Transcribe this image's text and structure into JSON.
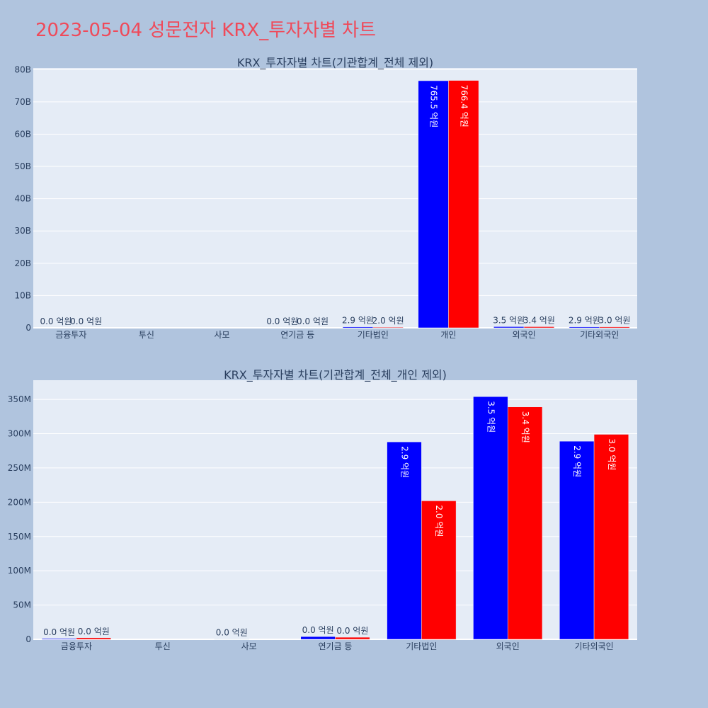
{
  "page": {
    "title": "2023-05-04 성문전자 KRX_투자자별 차트"
  },
  "colors": {
    "background": "#b0c4de",
    "plot_background": "#e5ecf6",
    "series_1": "#0000ff",
    "series_2": "#ff0000",
    "title": "#ef4a5a",
    "text": "#2a3f5f"
  },
  "chart_data": [
    {
      "type": "bar",
      "title": "KRX_투자자별 차트(기관합계_전체 제외)",
      "categories": [
        "금융투자",
        "투신",
        "사모",
        "연기금 등",
        "기타법인",
        "개인",
        "외국인",
        "기타외국인"
      ],
      "ylim": [
        0,
        80500000000
      ],
      "yticks": [
        0,
        10000000000,
        20000000000,
        30000000000,
        40000000000,
        50000000000,
        60000000000,
        70000000000,
        80000000000
      ],
      "ytick_labels": [
        "0",
        "10B",
        "20B",
        "30B",
        "40B",
        "50B",
        "60B",
        "70B",
        "80B"
      ],
      "grid": true,
      "series": [
        {
          "values": [
            0,
            null,
            null,
            0,
            290000000,
            76550000000,
            350000000,
            290000000
          ],
          "labels": [
            "0.0 억원",
            "",
            "",
            "0.0 억원",
            "2.9 억원",
            "765.5 억원",
            "3.5 억원",
            "2.9 억원"
          ]
        },
        {
          "values": [
            0,
            null,
            null,
            0,
            200000000,
            76640000000,
            340000000,
            300000000
          ],
          "labels": [
            "0.0 억원",
            "",
            "",
            "0.0 억원",
            "2.0 억원",
            "766.4 억원",
            "3.4 억원",
            "3.0 억원"
          ]
        }
      ]
    },
    {
      "type": "bar",
      "title": "KRX_투자자별 차트(기관합계_전체_개인 제외)",
      "categories": [
        "금융투자",
        "투신",
        "사모",
        "연기금 등",
        "기타법인",
        "외국인",
        "기타외국인"
      ],
      "ylim": [
        0,
        378000000
      ],
      "yticks": [
        0,
        50000000,
        100000000,
        150000000,
        200000000,
        250000000,
        300000000,
        350000000
      ],
      "ytick_labels": [
        "0",
        "50M",
        "100M",
        "150M",
        "200M",
        "250M",
        "300M",
        "350M"
      ],
      "grid": true,
      "series": [
        {
          "values": [
            1200000,
            null,
            400000,
            4000000,
            288000000,
            354000000,
            289000000
          ],
          "labels": [
            "0.0 억원",
            "",
            "0.0 억원",
            "0.0 억원",
            "2.9 억원",
            "3.5 억원",
            "2.9 억원"
          ]
        },
        {
          "values": [
            2200000,
            null,
            null,
            3000000,
            202000000,
            339000000,
            299000000
          ],
          "labels": [
            "0.0 억원",
            "",
            "",
            "0.0 억원",
            "2.0 억원",
            "3.4 억원",
            "3.0 억원"
          ]
        }
      ]
    }
  ]
}
